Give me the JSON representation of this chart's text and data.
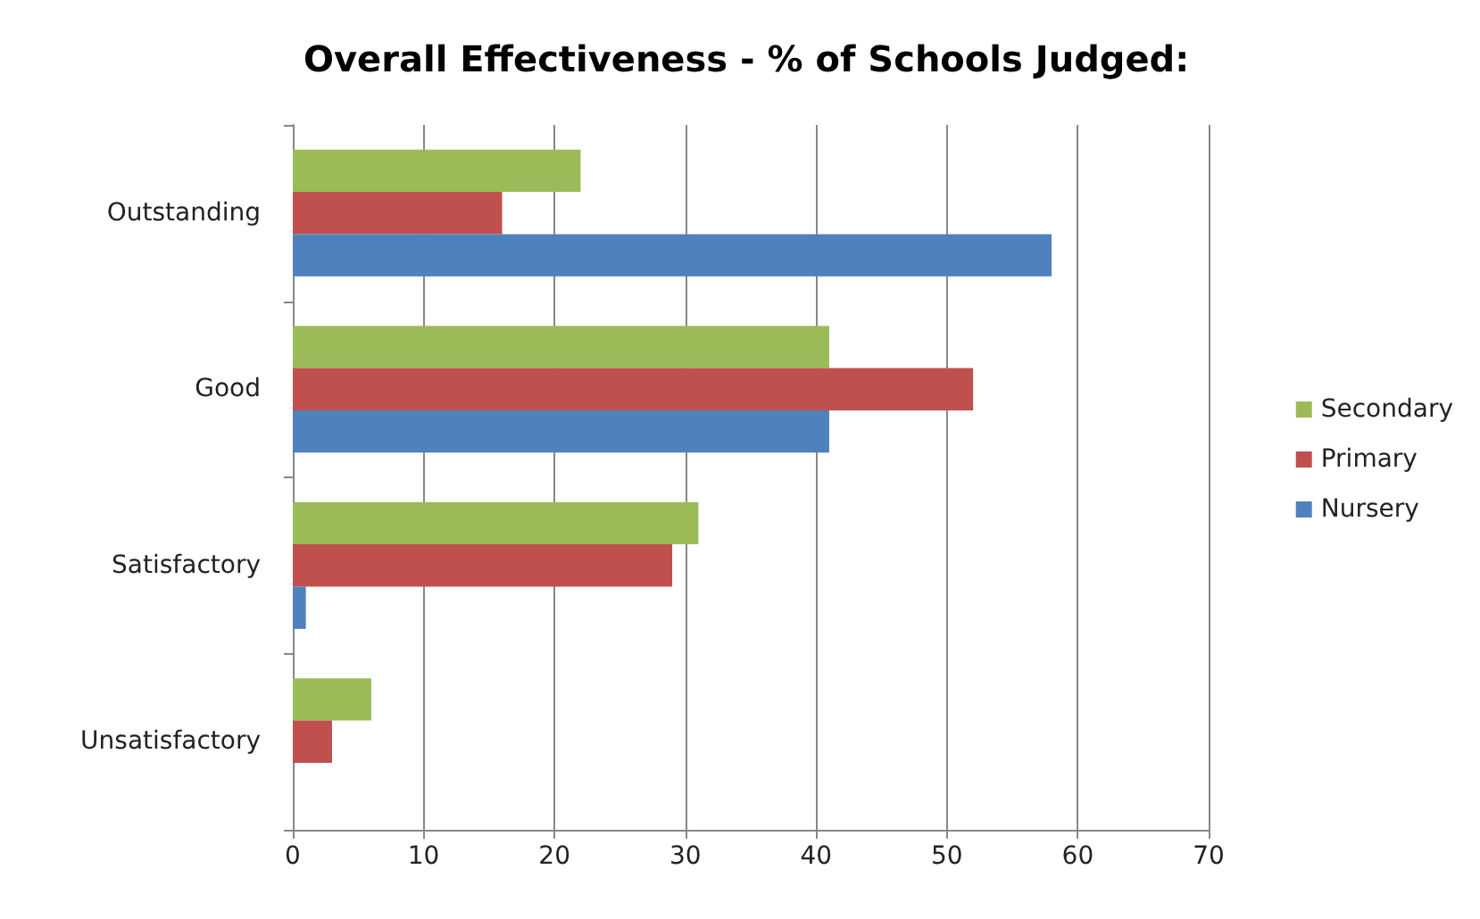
{
  "chart_data": {
    "type": "bar",
    "orientation": "horizontal",
    "title": "Overall Effectiveness - % of Schools Judged:",
    "categories": [
      "Outstanding",
      "Good",
      "Satisfactory",
      "Unsatisfactory"
    ],
    "series": [
      {
        "name": "Secondary",
        "color": "#9bbb59",
        "values": [
          22,
          41,
          31,
          6
        ]
      },
      {
        "name": "Primary",
        "color": "#c0504d",
        "values": [
          16,
          52,
          29,
          3
        ]
      },
      {
        "name": "Nursery",
        "color": "#4f81bd",
        "values": [
          58,
          41,
          1,
          0
        ]
      }
    ],
    "xlim": [
      0,
      70
    ],
    "xticks": [
      0,
      10,
      20,
      30,
      40,
      50,
      60,
      70
    ],
    "grid": "x",
    "legend": "right"
  }
}
